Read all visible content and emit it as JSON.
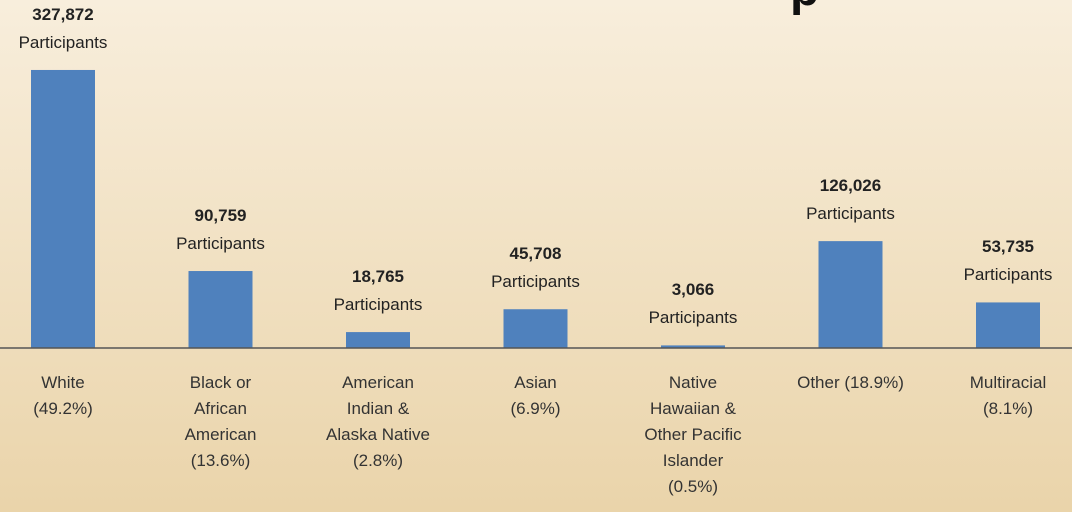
{
  "chart_data": {
    "type": "bar",
    "title": "p",
    "categories": [
      "White\n(49.2%)",
      "Black or\nAfrican\nAmerican\n(13.6%)",
      "American\nIndian &\nAlaska Native\n(2.8%)",
      "Asian\n(6.9%)",
      "Native\nHawaiian &\nOther Pacific\nIslander\n(0.5%)",
      "Other (18.9%)",
      "Multiracial\n(8.1%)"
    ],
    "values": [
      327872,
      90759,
      18765,
      45708,
      3066,
      126026,
      53735
    ],
    "value_labels": [
      "327,872",
      "90,759",
      "18,765",
      "45,708",
      "3,066",
      "126,026",
      "53,735"
    ],
    "value_label_suffix": "Participants",
    "color": "#4f81bd",
    "ylim": [
      0,
      400000
    ]
  }
}
